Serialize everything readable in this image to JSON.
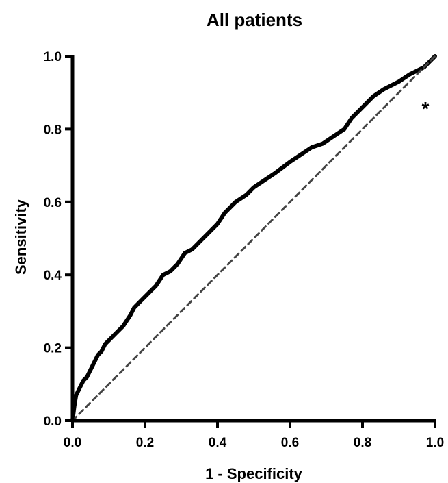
{
  "chart_data": {
    "type": "line",
    "title": "All patients",
    "xlabel": "1 - Specificity",
    "ylabel": "Sensitivity",
    "xlim": [
      0,
      1
    ],
    "ylim": [
      0,
      1
    ],
    "x_ticks": [
      "0.0",
      "0.2",
      "0.4",
      "0.6",
      "0.8",
      "1.0"
    ],
    "y_ticks": [
      "0.0",
      "0.2",
      "0.4",
      "0.6",
      "0.8",
      "1.0"
    ],
    "x_tick_values": [
      0,
      0.2,
      0.4,
      0.6,
      0.8,
      1.0
    ],
    "y_tick_values": [
      0,
      0.2,
      0.4,
      0.6,
      0.8,
      1.0
    ],
    "grid": false,
    "annotation": "*",
    "series": [
      {
        "style": "solid",
        "color": "#000000",
        "x": [
          0,
          0.005,
          0.01,
          0.02,
          0.03,
          0.04,
          0.05,
          0.06,
          0.07,
          0.08,
          0.09,
          0.1,
          0.12,
          0.14,
          0.16,
          0.17,
          0.19,
          0.21,
          0.23,
          0.25,
          0.27,
          0.29,
          0.31,
          0.33,
          0.35,
          0.37,
          0.4,
          0.42,
          0.45,
          0.48,
          0.5,
          0.53,
          0.56,
          0.6,
          0.63,
          0.66,
          0.69,
          0.72,
          0.75,
          0.77,
          0.8,
          0.83,
          0.86,
          0.9,
          0.93,
          0.95,
          0.97,
          0.99,
          1.0
        ],
        "y": [
          0,
          0.04,
          0.07,
          0.09,
          0.11,
          0.12,
          0.14,
          0.16,
          0.18,
          0.19,
          0.21,
          0.22,
          0.24,
          0.26,
          0.29,
          0.31,
          0.33,
          0.35,
          0.37,
          0.4,
          0.41,
          0.43,
          0.46,
          0.47,
          0.49,
          0.51,
          0.54,
          0.57,
          0.6,
          0.62,
          0.64,
          0.66,
          0.68,
          0.71,
          0.73,
          0.75,
          0.76,
          0.78,
          0.8,
          0.83,
          0.86,
          0.89,
          0.91,
          0.93,
          0.95,
          0.96,
          0.97,
          0.99,
          1.0
        ]
      },
      {
        "style": "dashed",
        "color": "#444444",
        "x": [
          0,
          1
        ],
        "y": [
          0,
          1
        ]
      }
    ]
  }
}
